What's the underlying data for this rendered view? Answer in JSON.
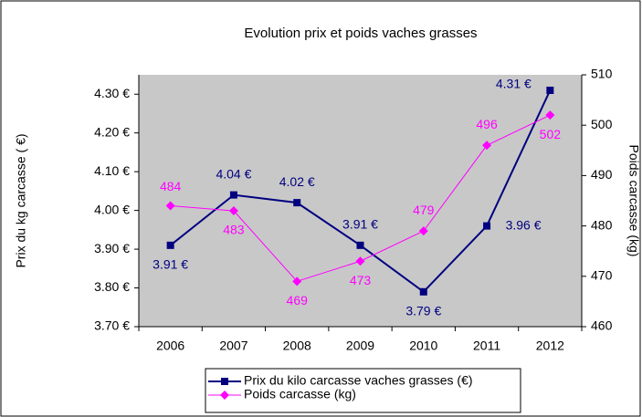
{
  "chart_data": {
    "type": "line",
    "title": "Evolution prix et poids vaches grasses",
    "ylabel": "Prix du kg carcasse ( €)",
    "y2label": "Poids carcasse (kg)",
    "categories": [
      "2006",
      "2007",
      "2008",
      "2009",
      "2010",
      "2011",
      "2012"
    ],
    "series": [
      {
        "name": "Prix du kilo carcasse vaches grasses (€)",
        "color": "#000080",
        "marker": "square",
        "values": [
          3.91,
          4.04,
          4.02,
          3.91,
          3.79,
          3.96,
          4.31
        ],
        "value_labels": [
          "3.91 €",
          "4.04 €",
          "4.02 €",
          "3.91 €",
          "3.79 €",
          "3.96 €",
          "4.31 €"
        ]
      },
      {
        "name": "Poids carcasse (kg)",
        "color": "#ff00ff",
        "marker": "diamond",
        "axis": "y2",
        "values": [
          484,
          483,
          469,
          473,
          479,
          496,
          502
        ]
      }
    ],
    "ylim": [
      3.7,
      4.35
    ],
    "yticks": [
      {
        "value": 3.7,
        "label": "3.70 €"
      },
      {
        "value": 3.8,
        "label": "3.80 €"
      },
      {
        "value": 3.9,
        "label": "3.90 €"
      },
      {
        "value": 4.0,
        "label": "4.00 €"
      },
      {
        "value": 4.1,
        "label": "4.10 €"
      },
      {
        "value": 4.2,
        "label": "4.20 €"
      },
      {
        "value": 4.3,
        "label": "4.30 €"
      }
    ],
    "y2lim": [
      460,
      510
    ],
    "y2ticks": [
      460,
      470,
      480,
      490,
      500,
      510
    ],
    "grid": false,
    "legend": "bottom"
  }
}
